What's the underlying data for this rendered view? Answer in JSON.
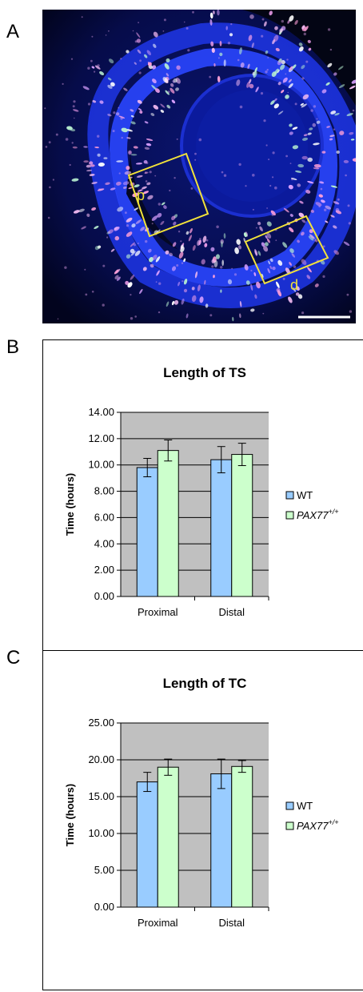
{
  "panels": {
    "a": "A",
    "b": "B",
    "c": "C"
  },
  "micrograph": {
    "box_p_label": "p",
    "box_d_label": "d",
    "colors": {
      "background": "#000000",
      "nuclei": "#1a2bd6",
      "stain": "#e6a0e0",
      "box": "#f2e23a",
      "scalebar": "#ffffff"
    }
  },
  "colors": {
    "wt": "#99ccff",
    "pax": "#ccffcc",
    "plot_area": "#c0c0c0",
    "grid": "#000000"
  },
  "chart_data": [
    {
      "type": "bar",
      "title": "Length of TS",
      "ylabel": "Time (hours)",
      "xlabel": "",
      "categories": [
        "Proximal",
        "Distal"
      ],
      "ylim": [
        0,
        14
      ],
      "yticks": [
        "0.00",
        "2.00",
        "4.00",
        "6.00",
        "8.00",
        "10.00",
        "12.00",
        "14.00"
      ],
      "grid": true,
      "legend_placement": "right",
      "series": [
        {
          "name": "WT",
          "values": [
            9.8,
            10.4
          ],
          "errors": [
            0.7,
            1.0
          ]
        },
        {
          "name": "PAX77",
          "name_sup": "+/+",
          "values": [
            11.1,
            10.8
          ],
          "errors": [
            0.8,
            0.85
          ]
        }
      ]
    },
    {
      "type": "bar",
      "title": "Length of TC",
      "ylabel": "Time (hours)",
      "xlabel": "",
      "categories": [
        "Proximal",
        "Distal"
      ],
      "ylim": [
        0,
        25
      ],
      "yticks": [
        "0.00",
        "5.00",
        "10.00",
        "15.00",
        "20.00",
        "25.00"
      ],
      "grid": true,
      "legend_placement": "right",
      "series": [
        {
          "name": "WT",
          "values": [
            17.0,
            18.1
          ],
          "errors": [
            1.3,
            2.0
          ]
        },
        {
          "name": "PAX77",
          "name_sup": "+/+",
          "values": [
            19.0,
            19.1
          ],
          "errors": [
            1.1,
            0.8
          ]
        }
      ]
    }
  ]
}
